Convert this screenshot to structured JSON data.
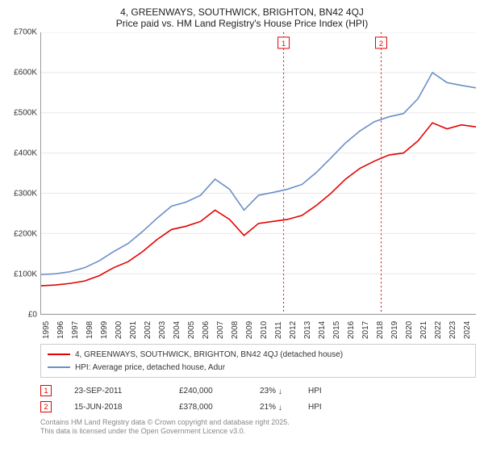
{
  "title": {
    "line1": "4, GREENWAYS, SOUTHWICK, BRIGHTON, BN42 4QJ",
    "line2": "Price paid vs. HM Land Registry's House Price Index (HPI)"
  },
  "chart": {
    "type": "line",
    "background_color": "#ffffff",
    "grid_color": "#e8e8e8",
    "axis_color": "#999999",
    "tick_font_size": 10,
    "x": {
      "min": 1995,
      "max": 2025,
      "ticks": [
        1995,
        1996,
        1997,
        1998,
        1999,
        2000,
        2001,
        2002,
        2003,
        2004,
        2005,
        2006,
        2007,
        2008,
        2009,
        2010,
        2011,
        2012,
        2013,
        2014,
        2015,
        2016,
        2017,
        2018,
        2019,
        2020,
        2021,
        2022,
        2023,
        2024
      ]
    },
    "y": {
      "min": 0,
      "max": 700000,
      "ticks": [
        0,
        100000,
        200000,
        300000,
        400000,
        500000,
        600000,
        700000
      ],
      "tick_labels": [
        "£0",
        "£100K",
        "£200K",
        "£300K",
        "£400K",
        "£500K",
        "£600K",
        "£700K"
      ]
    },
    "series": [
      {
        "id": "property",
        "color": "#e40000",
        "width": 1.8,
        "points": [
          [
            1995,
            70000
          ],
          [
            1996,
            72000
          ],
          [
            1997,
            76000
          ],
          [
            1998,
            82000
          ],
          [
            1999,
            95000
          ],
          [
            2000,
            115000
          ],
          [
            2001,
            130000
          ],
          [
            2002,
            155000
          ],
          [
            2003,
            185000
          ],
          [
            2004,
            210000
          ],
          [
            2005,
            218000
          ],
          [
            2006,
            230000
          ],
          [
            2007,
            258000
          ],
          [
            2008,
            235000
          ],
          [
            2009,
            195000
          ],
          [
            2010,
            225000
          ],
          [
            2011,
            230000
          ],
          [
            2012,
            235000
          ],
          [
            2013,
            245000
          ],
          [
            2014,
            270000
          ],
          [
            2015,
            300000
          ],
          [
            2016,
            335000
          ],
          [
            2017,
            362000
          ],
          [
            2018,
            380000
          ],
          [
            2019,
            395000
          ],
          [
            2020,
            400000
          ],
          [
            2021,
            430000
          ],
          [
            2022,
            475000
          ],
          [
            2023,
            460000
          ],
          [
            2024,
            470000
          ],
          [
            2025,
            465000
          ]
        ]
      },
      {
        "id": "hpi",
        "color": "#6a8fc7",
        "width": 1.6,
        "points": [
          [
            1995,
            98000
          ],
          [
            1996,
            100000
          ],
          [
            1997,
            105000
          ],
          [
            1998,
            115000
          ],
          [
            1999,
            132000
          ],
          [
            2000,
            155000
          ],
          [
            2001,
            175000
          ],
          [
            2002,
            205000
          ],
          [
            2003,
            238000
          ],
          [
            2004,
            268000
          ],
          [
            2005,
            278000
          ],
          [
            2006,
            295000
          ],
          [
            2007,
            335000
          ],
          [
            2008,
            310000
          ],
          [
            2009,
            258000
          ],
          [
            2010,
            295000
          ],
          [
            2011,
            302000
          ],
          [
            2012,
            310000
          ],
          [
            2013,
            322000
          ],
          [
            2014,
            352000
          ],
          [
            2015,
            388000
          ],
          [
            2016,
            425000
          ],
          [
            2017,
            455000
          ],
          [
            2018,
            478000
          ],
          [
            2019,
            490000
          ],
          [
            2020,
            498000
          ],
          [
            2021,
            535000
          ],
          [
            2022,
            600000
          ],
          [
            2023,
            575000
          ],
          [
            2024,
            568000
          ],
          [
            2025,
            562000
          ]
        ]
      }
    ],
    "sale_markers": [
      {
        "n": "1",
        "year": 2011.73,
        "color": "#e40000"
      },
      {
        "n": "2",
        "year": 2018.46,
        "color": "#e40000"
      }
    ]
  },
  "legend": {
    "items": [
      {
        "color": "#e40000",
        "label": "4, GREENWAYS, SOUTHWICK, BRIGHTON, BN42 4QJ (detached house)"
      },
      {
        "color": "#6a8fc7",
        "label": "HPI: Average price, detached house, Adur"
      }
    ]
  },
  "sales": [
    {
      "n": "1",
      "marker_color": "#e40000",
      "date": "23-SEP-2011",
      "price": "£240,000",
      "pct": "23%",
      "dir": "↓",
      "vs": "HPI"
    },
    {
      "n": "2",
      "marker_color": "#e40000",
      "date": "15-JUN-2018",
      "price": "£378,000",
      "pct": "21%",
      "dir": "↓",
      "vs": "HPI"
    }
  ],
  "footer": {
    "line1": "Contains HM Land Registry data © Crown copyright and database right 2025.",
    "line2": "This data is licensed under the Open Government Licence v3.0."
  }
}
